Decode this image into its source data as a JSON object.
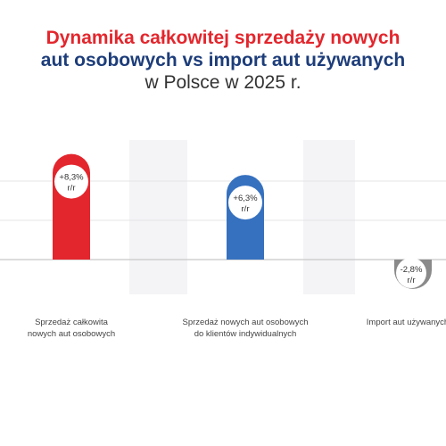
{
  "title": {
    "line1": "Dynamika całkowitej sprzedaży nowych",
    "line2": "aut osobowych vs import aut używanych",
    "line3": "w Polsce w 2025 r."
  },
  "chart_data": {
    "type": "bar",
    "categories": [
      [
        "Sprzedaż całkowita",
        "nowych aut osobowych"
      ],
      [
        "Sprzedaż nowych aut osobowych",
        "do klientów indywidualnych"
      ],
      [
        "Import aut używanych"
      ]
    ],
    "values": [
      8.3,
      6.3,
      -2.8
    ],
    "value_labels": [
      [
        "+8,3%",
        "r/r"
      ],
      [
        "+6,3%",
        "r/r"
      ],
      [
        "-2,8%",
        "r/r"
      ]
    ],
    "colors": [
      "#e3262d",
      "#3671bf",
      "#8a8a8a"
    ],
    "ylim": [
      -3,
      10
    ],
    "grid": true
  }
}
